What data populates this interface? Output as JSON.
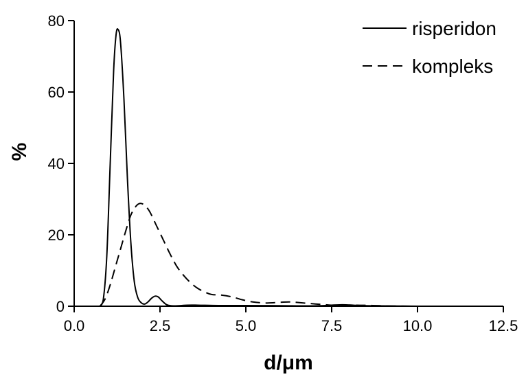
{
  "chart_data": {
    "type": "line",
    "title": "",
    "xlabel": "d/μm",
    "ylabel": "%",
    "xlim": [
      0,
      12.5
    ],
    "ylim": [
      0,
      80
    ],
    "x_ticks": [
      "0.0",
      "2.5",
      "5.0",
      "7.5",
      "10.0",
      "12.5"
    ],
    "y_ticks": [
      "0",
      "20",
      "40",
      "60",
      "80"
    ],
    "grid": false,
    "legend_position": "top-right",
    "series": [
      {
        "name": "risperidon",
        "line_style": "solid",
        "color": "#000000",
        "points": [
          [
            0.75,
            0
          ],
          [
            0.85,
            2
          ],
          [
            0.95,
            14
          ],
          [
            1.05,
            40
          ],
          [
            1.15,
            66
          ],
          [
            1.22,
            76
          ],
          [
            1.28,
            77.5
          ],
          [
            1.35,
            74
          ],
          [
            1.45,
            58
          ],
          [
            1.55,
            36
          ],
          [
            1.65,
            18
          ],
          [
            1.75,
            7
          ],
          [
            1.85,
            2.5
          ],
          [
            1.95,
            1
          ],
          [
            2.05,
            0.6
          ],
          [
            2.15,
            1.2
          ],
          [
            2.25,
            2.2
          ],
          [
            2.35,
            2.8
          ],
          [
            2.45,
            2.6
          ],
          [
            2.55,
            1.6
          ],
          [
            2.7,
            0.4
          ],
          [
            2.9,
            0.1
          ],
          [
            3.3,
            0.3
          ],
          [
            3.6,
            0.3
          ],
          [
            4.2,
            0.2
          ],
          [
            5.0,
            0.2
          ],
          [
            6.0,
            0.15
          ],
          [
            7.0,
            0.1
          ],
          [
            7.8,
            0.4
          ],
          [
            8.3,
            0.2
          ],
          [
            9.0,
            0.1
          ],
          [
            10.0,
            0
          ]
        ]
      },
      {
        "name": "kompleks",
        "line_style": "dashed",
        "color": "#000000",
        "points": [
          [
            0.75,
            0
          ],
          [
            0.9,
            2
          ],
          [
            1.05,
            6
          ],
          [
            1.2,
            11
          ],
          [
            1.35,
            16
          ],
          [
            1.5,
            21
          ],
          [
            1.65,
            25.5
          ],
          [
            1.8,
            28
          ],
          [
            1.92,
            28.8
          ],
          [
            2.05,
            28.3
          ],
          [
            2.2,
            26.5
          ],
          [
            2.4,
            22.5
          ],
          [
            2.6,
            18.5
          ],
          [
            2.8,
            14.5
          ],
          [
            3.0,
            11
          ],
          [
            3.2,
            8.5
          ],
          [
            3.4,
            6.5
          ],
          [
            3.6,
            5
          ],
          [
            3.8,
            4
          ],
          [
            4.0,
            3.3
          ],
          [
            4.3,
            3.1
          ],
          [
            4.6,
            2.6
          ],
          [
            4.9,
            1.8
          ],
          [
            5.2,
            1.2
          ],
          [
            5.6,
            0.9
          ],
          [
            6.0,
            1.1
          ],
          [
            6.3,
            1.2
          ],
          [
            6.7,
            0.9
          ],
          [
            7.2,
            0.5
          ],
          [
            7.7,
            0.2
          ],
          [
            8.2,
            0.3
          ],
          [
            8.7,
            0.2
          ],
          [
            9.3,
            0.05
          ],
          [
            10.0,
            0
          ]
        ]
      }
    ]
  }
}
